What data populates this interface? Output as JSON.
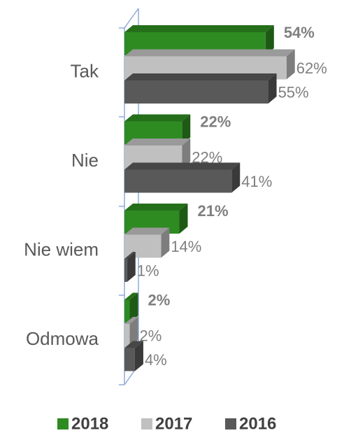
{
  "chart_data": {
    "type": "bar3d-horizontal",
    "categories": [
      "Tak",
      "Nie",
      "Nie wiem",
      "Odmowa"
    ],
    "xlim": [
      0,
      80
    ],
    "legend": "bottom",
    "series": [
      {
        "name": "2018",
        "color": "#2e8b22",
        "values": [
          54,
          22,
          21,
          2
        ],
        "value_labels": [
          "54%",
          "22%",
          "21%",
          "2%"
        ],
        "bold": true
      },
      {
        "name": "2017",
        "color": "#c0c0c0",
        "values": [
          62,
          22,
          14,
          2
        ],
        "value_labels": [
          "62%",
          "22%",
          "14%",
          "2%"
        ]
      },
      {
        "name": "2016",
        "color": "#595959",
        "values": [
          55,
          41,
          1,
          4
        ],
        "value_labels": [
          "55%",
          "41%",
          "1%",
          "4%"
        ]
      }
    ]
  }
}
